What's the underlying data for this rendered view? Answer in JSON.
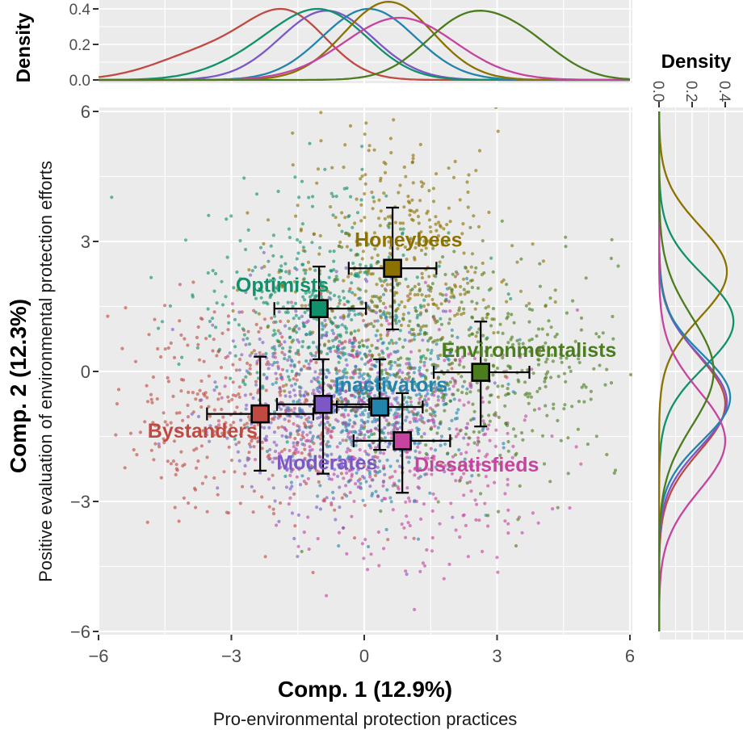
{
  "figure": {
    "background": "#ffffff",
    "panel_background": "#ebebeb",
    "grid_color": "#ffffff",
    "tick_color": "#333333",
    "tick_label_color": "#4d4d4d"
  },
  "chart_data": {
    "type": "scatter",
    "description": "PCA component scatter plot of 7 respondent clusters with centroid squares, error bars and marginal density curves (top: Comp.1, right: Comp.2)",
    "xlabel": "Comp. 1 (12.9%)",
    "xsublabel": "Pro-environmental protection practices",
    "ylabel": "Comp. 2 (12.3%)",
    "ysublabel": "Positive evaluation of environmental protection efforts",
    "xlim": [
      -6,
      6
    ],
    "ylim": [
      -6,
      6
    ],
    "x_ticks": [
      -6,
      -3,
      0,
      3,
      6
    ],
    "x_tick_labels": [
      "−6",
      "−3",
      "0",
      "3",
      "6"
    ],
    "y_ticks": [
      -6,
      -3,
      0,
      3,
      6
    ],
    "y_tick_labels": [
      "−6",
      "−3",
      "0",
      "3",
      "6"
    ],
    "grid_step": 1.5,
    "marginal_density": {
      "title": "Density",
      "ticks": [
        0,
        0.2,
        0.4
      ],
      "tick_labels": [
        "0.0",
        "0.2",
        "0.4"
      ],
      "range": [
        0,
        0.45
      ]
    },
    "legend_position": "labels-in-plot",
    "clusters": [
      {
        "name": "Bystanders",
        "color": "#c04a42",
        "centroid": {
          "x": -2.35,
          "y": -0.98
        },
        "xerr": {
          "lo": -3.55,
          "hi": -1.15
        },
        "yerr": {
          "lo": -2.29,
          "hi": 0.34
        },
        "label": {
          "x": -3.65,
          "y": -1.36
        },
        "points": {
          "n": 430,
          "sx": 1.6,
          "sy": 1.35
        },
        "density_top": {
          "peak": 0.4,
          "components": [
            [
              -1.7,
              0.9,
              1.0
            ],
            [
              -3.4,
              1.2,
              0.5
            ]
          ]
        },
        "density_right": {
          "peak": 0.4,
          "components": [
            [
              -0.75,
              1.1,
              1.0
            ]
          ]
        }
      },
      {
        "name": "Moderates",
        "color": "#7b58c6",
        "centroid": {
          "x": -0.93,
          "y": -0.76
        },
        "xerr": {
          "lo": -1.97,
          "hi": 0.11
        },
        "yerr": {
          "lo": -2.36,
          "hi": 0.28
        },
        "label": {
          "x": -0.84,
          "y": -2.1
        },
        "points": {
          "n": 430,
          "sx": 1.2,
          "sy": 1.25
        },
        "density_top": {
          "peak": 0.39,
          "components": [
            [
              -0.85,
              1.05,
              1.0
            ]
          ]
        },
        "density_right": {
          "peak": 0.41,
          "components": [
            [
              -0.7,
              1.05,
              1.0
            ]
          ]
        }
      },
      {
        "name": "Optimists",
        "color": "#10916c",
        "centroid": {
          "x": -1.02,
          "y": 1.45
        },
        "xerr": {
          "lo": -2.03,
          "hi": 0.04
        },
        "yerr": {
          "lo": 0.28,
          "hi": 2.42
        },
        "label": {
          "x": -1.85,
          "y": 2.0
        },
        "points": {
          "n": 430,
          "sx": 1.45,
          "sy": 1.3
        },
        "density_top": {
          "peak": 0.4,
          "components": [
            [
              -0.8,
              1.0,
              1.0
            ],
            [
              -2.1,
              1.1,
              0.45
            ]
          ]
        },
        "density_right": {
          "peak": 0.45,
          "components": [
            [
              1.15,
              1.05,
              1.0
            ]
          ]
        }
      },
      {
        "name": "Inactivators",
        "color": "#2384ab",
        "centroid": {
          "x": 0.35,
          "y": -0.82
        },
        "xerr": {
          "lo": -0.62,
          "hi": 1.32
        },
        "yerr": {
          "lo": -1.81,
          "hi": 0.28
        },
        "label": {
          "x": 0.6,
          "y": -0.3
        },
        "points": {
          "n": 430,
          "sx": 1.05,
          "sy": 1.15
        },
        "density_top": {
          "peak": 0.4,
          "components": [
            [
              0.1,
              1.05,
              1.0
            ]
          ]
        },
        "density_right": {
          "peak": 0.43,
          "components": [
            [
              -0.6,
              1.0,
              1.0
            ]
          ]
        }
      },
      {
        "name": "Honeybees",
        "color": "#8b7100",
        "centroid": {
          "x": 0.64,
          "y": 2.38
        },
        "xerr": {
          "lo": -0.35,
          "hi": 1.63
        },
        "yerr": {
          "lo": 0.97,
          "hi": 3.78
        },
        "label": {
          "x": 1.0,
          "y": 3.05
        },
        "points": {
          "n": 430,
          "sx": 1.3,
          "sy": 1.45
        },
        "density_top": {
          "peak": 0.44,
          "components": [
            [
              0.55,
              1.0,
              1.0
            ]
          ]
        },
        "density_right": {
          "peak": 0.41,
          "components": [
            [
              2.3,
              1.05,
              1.0
            ]
          ]
        }
      },
      {
        "name": "Dissatisfieds",
        "color": "#c5449f",
        "centroid": {
          "x": 0.86,
          "y": -1.6
        },
        "xerr": {
          "lo": -0.24,
          "hi": 1.94
        },
        "yerr": {
          "lo": -2.8,
          "hi": -0.5
        },
        "label": {
          "x": 2.54,
          "y": -2.14
        },
        "points": {
          "n": 430,
          "sx": 1.5,
          "sy": 1.4
        },
        "density_top": {
          "peak": 0.35,
          "components": [
            [
              0.8,
              1.25,
              1.0
            ]
          ]
        },
        "density_right": {
          "peak": 0.4,
          "components": [
            [
              -1.6,
              1.15,
              1.0
            ]
          ]
        }
      },
      {
        "name": "Environmentalists",
        "color": "#4b7c1e",
        "centroid": {
          "x": 2.63,
          "y": -0.02
        },
        "xerr": {
          "lo": 1.57,
          "hi": 3.73
        },
        "yerr": {
          "lo": -1.27,
          "hi": 1.15
        },
        "label": {
          "x": 3.72,
          "y": 0.5
        },
        "points": {
          "n": 430,
          "sx": 1.5,
          "sy": 1.3
        },
        "density_top": {
          "peak": 0.39,
          "components": [
            [
              2.3,
              0.95,
              1.0
            ],
            [
              3.7,
              0.85,
              0.5
            ]
          ]
        },
        "density_right": {
          "peak": 0.33,
          "components": [
            [
              0.0,
              1.25,
              1.0
            ]
          ]
        }
      }
    ]
  }
}
